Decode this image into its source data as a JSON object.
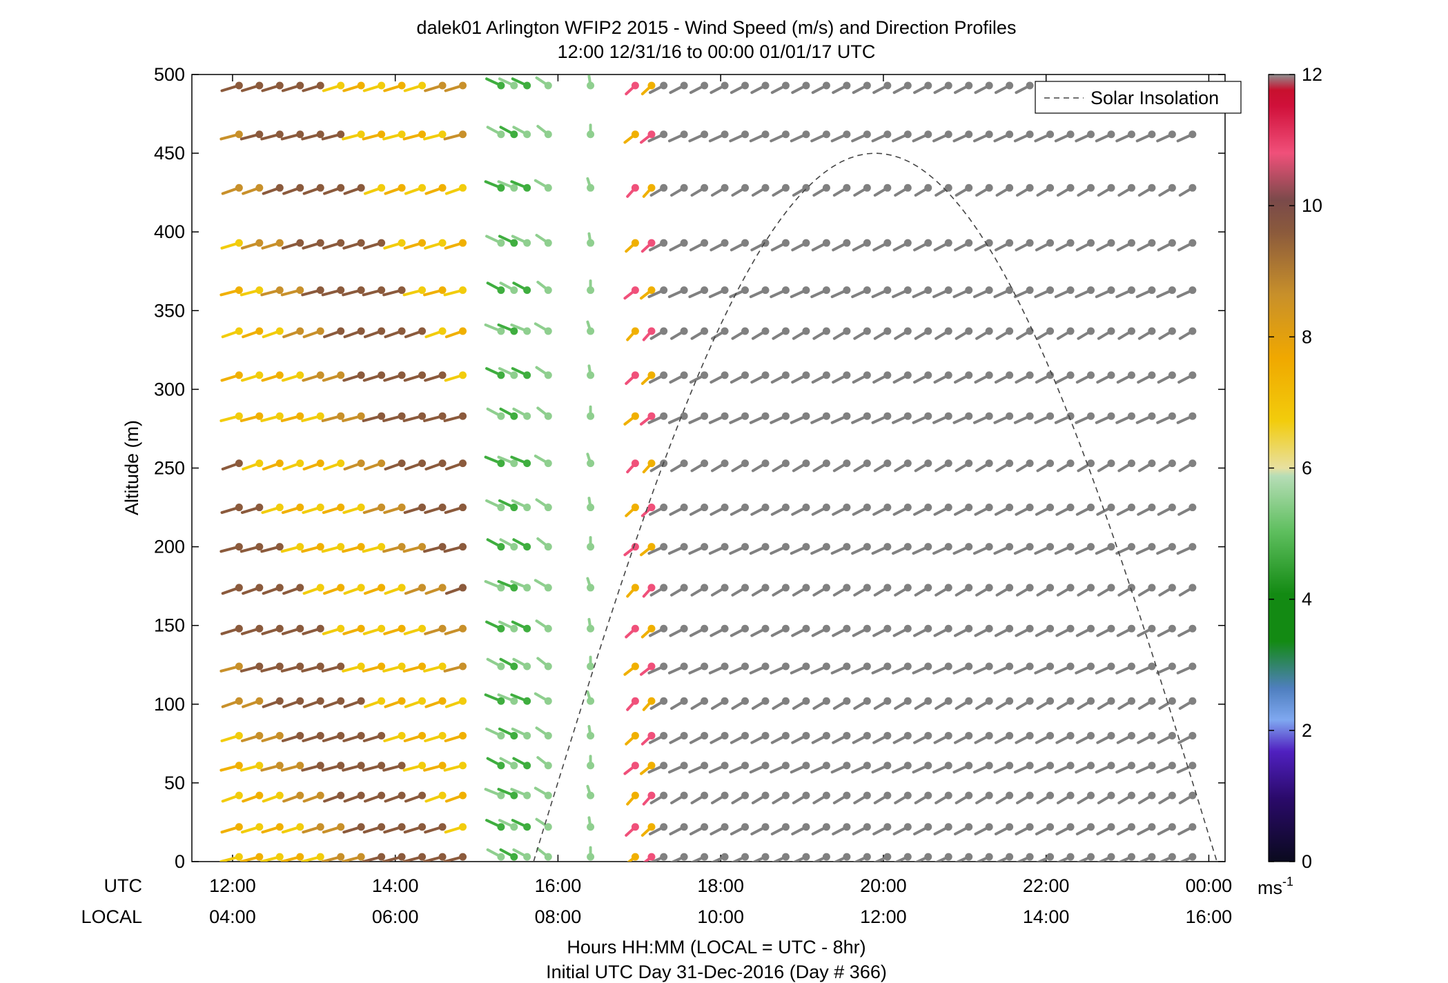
{
  "chart_data": {
    "type": "scatter",
    "subtype": "wind barbs",
    "title": "dalek01 Arlington WFIP2 2015 - Wind Speed (m/s) and Direction Profiles",
    "subtitle": "12:00 12/31/16 to 00:00 01/01/17  UTC",
    "xlabel": "Hours HH:MM  (LOCAL = UTC - 8hr)",
    "xlabel2": "Initial UTC Day 31-Dec-2016 (Day # 366)",
    "ylabel": "Altitude (m)",
    "x_row_labels": [
      "UTC",
      "LOCAL"
    ],
    "x_ticks_utc": [
      "12:00",
      "14:00",
      "16:00",
      "18:00",
      "20:00",
      "22:00",
      "00:00"
    ],
    "x_ticks_local": [
      "04:00",
      "06:00",
      "08:00",
      "10:00",
      "12:00",
      "14:00",
      "16:00"
    ],
    "x_tick_hours": [
      12,
      14,
      16,
      18,
      20,
      22,
      24
    ],
    "xlim": [
      11.5,
      24.2
    ],
    "ylim": [
      0,
      500
    ],
    "y_ticks": [
      0,
      50,
      100,
      150,
      200,
      250,
      300,
      350,
      400,
      450,
      500
    ],
    "altitudes": [
      3,
      22,
      42,
      61,
      80,
      102,
      124,
      148,
      174,
      200,
      225,
      253,
      283,
      309,
      337,
      363,
      393,
      428,
      462,
      493
    ],
    "colorbar": {
      "label": "ms",
      "label_sup": "-1",
      "ticks": [
        0,
        2,
        4,
        6,
        8,
        10,
        12
      ],
      "range": [
        0,
        12
      ]
    },
    "legend": {
      "entries": [
        "Solar Insolation"
      ],
      "placement": "top-right",
      "style": "dashed"
    },
    "solar_insolation": {
      "start_hour": 15.7,
      "end_hour": 24.1,
      "peak_hour": 19.9,
      "peak_altitude": 450
    },
    "colors": {
      "gray": "#808080",
      "lightgreen": "#8fcf8f",
      "green": "#3fae3f",
      "darkgreen": "#138a13",
      "yellow": "#f2cc0c",
      "paleyellow": "#efe090",
      "orange": "#f0b000",
      "tan": "#c8902a",
      "brown": "#8b5a3c",
      "pink": "#f0507a",
      "crimson": "#d0103a",
      "purple": "#5020c0",
      "silver": "#bdbdbd",
      "beige": "#e0dab0"
    },
    "series": [
      {
        "segments": [
          {
            "t0": 12.08,
            "t1": 14.88,
            "step": 0.25,
            "dir": 30,
            "pal": [
              "yellow",
              "orange",
              "yellow",
              "orange",
              "yellow",
              "tan",
              "tan",
              "brown",
              "brown",
              "brown",
              "brown",
              "brown"
            ],
            "gap": [
              13.6,
              13.82
            ]
          },
          {
            "t0": 15.3,
            "t1": 15.62,
            "step": 0.16,
            "dir": 310,
            "pal": [
              "lightgreen",
              "green"
            ]
          },
          {
            "t0": 15.88,
            "t1": 15.88,
            "step": 0.25,
            "dir": 300,
            "pal": [
              "lightgreen"
            ]
          },
          {
            "t0": 16.4,
            "t1": 16.4,
            "step": 0.25,
            "dir": 270,
            "pal": [
              "lightgreen"
            ]
          },
          {
            "t0": 16.95,
            "t1": 17.15,
            "step": 0.2,
            "dir": 60,
            "pal": [
              "orange",
              "pink"
            ]
          },
          {
            "t0": 17.3,
            "t1": 23.8,
            "step": 0.25,
            "dir": 45,
            "pal": [
              "gray"
            ]
          }
        ]
      }
    ]
  }
}
